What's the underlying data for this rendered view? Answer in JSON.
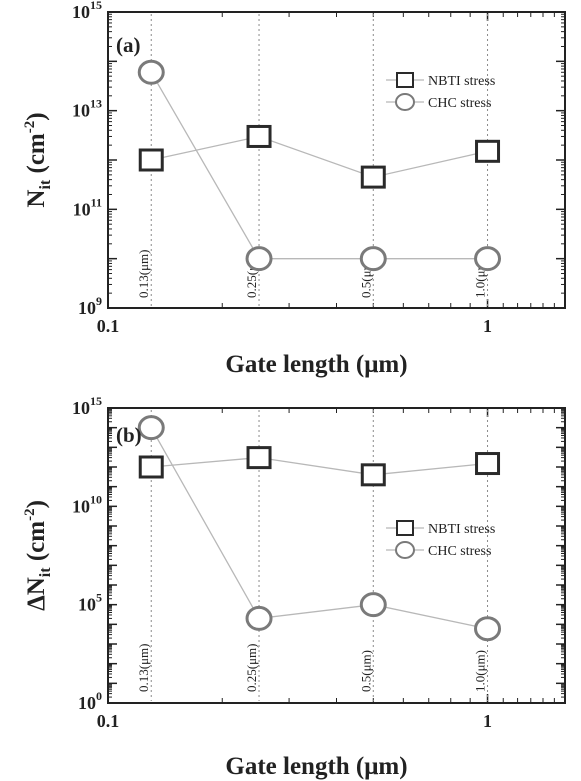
{
  "chart_data": [
    {
      "type": "line",
      "panel_label": "(a)",
      "xlabel": "Gate length (μm)",
      "ylabel_main": "N",
      "ylabel_sub": "it",
      "ylabel_unit": "(cm",
      "ylabel_exp": "-2",
      "ylabel_close": ")",
      "xscale": "log",
      "yscale": "log",
      "xlim": [
        0.1,
        1.6
      ],
      "ylim": [
        1000000000.0,
        1000000000000000.0
      ],
      "xticks": [
        {
          "label": "0.1",
          "value": 0.1
        },
        {
          "label": "1",
          "value": 1
        }
      ],
      "yticks": [
        {
          "base": "10",
          "exp": "9",
          "value": 1000000000.0
        },
        {
          "base": "10",
          "exp": "11",
          "value": 100000000000.0
        },
        {
          "base": "10",
          "exp": "13",
          "value": 10000000000000.0
        },
        {
          "base": "10",
          "exp": "15",
          "value": 1000000000000000.0
        }
      ],
      "x": [
        0.13,
        0.25,
        0.5,
        1.0
      ],
      "vlines": [
        {
          "x": 0.13,
          "label": "0.13(μm)"
        },
        {
          "x": 0.25,
          "label": "0.25(μm)"
        },
        {
          "x": 0.5,
          "label": "0.5(μm)"
        },
        {
          "x": 1.0,
          "label": "1.0(μm)"
        }
      ],
      "series": [
        {
          "name": "NBTI stress",
          "marker": "square",
          "values": [
            1000000000000.0,
            3000000000000.0,
            450000000000.0,
            1500000000000.0
          ]
        },
        {
          "name": "CHC stress",
          "marker": "circle",
          "values": [
            60000000000000.0,
            10000000000.0,
            10000000000.0,
            10000000000.0
          ]
        }
      ],
      "legend_position": "top-right",
      "grid": false
    },
    {
      "type": "line",
      "panel_label": "(b)",
      "xlabel": "Gate length (μm)",
      "ylabel_main": "ΔN",
      "ylabel_sub": "it",
      "ylabel_unit": "(cm",
      "ylabel_exp": "-2",
      "ylabel_close": ")",
      "xscale": "log",
      "yscale": "log",
      "xlim": [
        0.1,
        1.6
      ],
      "ylim": [
        1,
        1000000000000000.0
      ],
      "xticks": [
        {
          "label": "0.1",
          "value": 0.1
        },
        {
          "label": "1",
          "value": 1
        }
      ],
      "yticks": [
        {
          "base": "10",
          "exp": "0",
          "value": 1
        },
        {
          "base": "10",
          "exp": "5",
          "value": 100000.0
        },
        {
          "base": "10",
          "exp": "10",
          "value": 10000000000.0
        },
        {
          "base": "10",
          "exp": "15",
          "value": 1000000000000000.0
        }
      ],
      "x": [
        0.13,
        0.25,
        0.5,
        1.0
      ],
      "vlines": [
        {
          "x": 0.13,
          "label": "0.13(μm)"
        },
        {
          "x": 0.25,
          "label": "0.25(μm)"
        },
        {
          "x": 0.5,
          "label": "0.5(μm)"
        },
        {
          "x": 1.0,
          "label": "1.0(μm)"
        }
      ],
      "series": [
        {
          "name": "NBTI stress",
          "marker": "square",
          "values": [
            1000000000000.0,
            3000000000000.0,
            400000000000.0,
            1500000000000.0
          ]
        },
        {
          "name": "CHC stress",
          "marker": "circle",
          "values": [
            100000000000000.0,
            20000.0,
            100000.0,
            6000.0
          ]
        }
      ],
      "legend_position": "center-right",
      "grid": false
    }
  ],
  "colors": {
    "axis": "#222222",
    "series_line": "#b8b8b8",
    "vline": "#8a8a8a",
    "nbti_marker": "#2a2a2a",
    "chc_marker": "#7a7a7a"
  }
}
